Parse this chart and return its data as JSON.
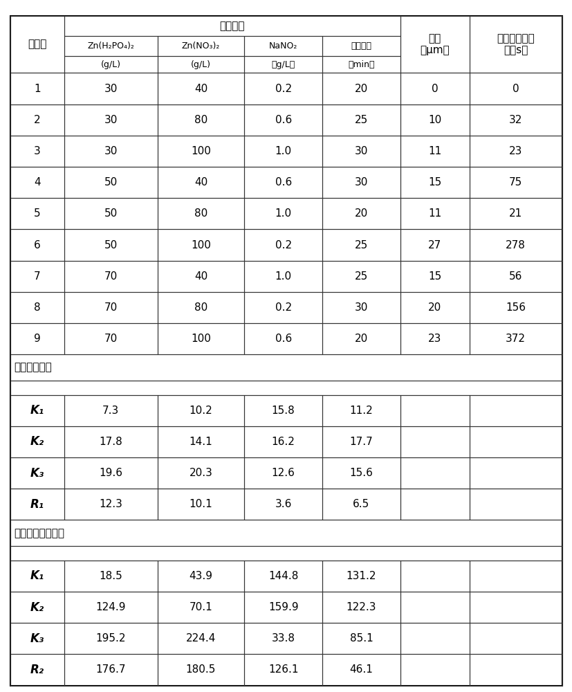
{
  "data_rows": [
    [
      "1",
      "30",
      "40",
      "0.2",
      "20",
      "0",
      "0"
    ],
    [
      "2",
      "30",
      "80",
      "0.6",
      "25",
      "10",
      "32"
    ],
    [
      "3",
      "30",
      "100",
      "1.0",
      "30",
      "11",
      "23"
    ],
    [
      "4",
      "50",
      "40",
      "0.6",
      "30",
      "15",
      "75"
    ],
    [
      "5",
      "50",
      "80",
      "1.0",
      "20",
      "11",
      "21"
    ],
    [
      "6",
      "50",
      "100",
      "0.2",
      "25",
      "27",
      "278"
    ],
    [
      "7",
      "70",
      "40",
      "1.0",
      "25",
      "15",
      "56"
    ],
    [
      "8",
      "70",
      "80",
      "0.2",
      "30",
      "20",
      "156"
    ],
    [
      "9",
      "70",
      "100",
      "0.6",
      "20",
      "23",
      "372"
    ]
  ],
  "section1_label": "极差分析膜厘",
  "section1_rows": [
    [
      "K₁",
      "7.3",
      "10.2",
      "15.8",
      "11.2"
    ],
    [
      "K₂",
      "17.8",
      "14.1",
      "16.2",
      "17.7"
    ],
    [
      "K₃",
      "19.6",
      "20.3",
      "12.6",
      "15.6"
    ],
    [
      "R₁",
      "12.3",
      "10.1",
      "3.6",
      "6.5"
    ]
  ],
  "section2_label": "极差分析点滴时间",
  "section2_rows": [
    [
      "K₁",
      "18.5",
      "43.9",
      "144.8",
      "131.2"
    ],
    [
      "K₂",
      "124.9",
      "70.1",
      "159.9",
      "122.3"
    ],
    [
      "K₃",
      "195.2",
      "224.4",
      "33.8",
      "85.1"
    ],
    [
      "R₂",
      "176.7",
      "180.5",
      "126.1",
      "46.1"
    ]
  ],
  "header_shuiping": "水平组合",
  "header_xuhao": "序号数",
  "header_meihou": "膜厘",
  "header_meihou2": "（μm）",
  "header_liusuan1": "确酸铜点滴时",
  "header_liusuan2": "间（s）",
  "col0_name": "Zn(H₂PO₄)₂",
  "col0_unit": "(g/L)",
  "col1_name": "Zn(NO₃)₂",
  "col1_unit": "(g/L)",
  "col2_name": "NaNO₂",
  "col2_unit": "（g/L）",
  "col3_name": "反应时间",
  "col3_unit": "（min）",
  "bg_color": "#ffffff",
  "border_color": "#333333",
  "text_color": "#000000",
  "font_size": 11,
  "header_font_size": 11
}
